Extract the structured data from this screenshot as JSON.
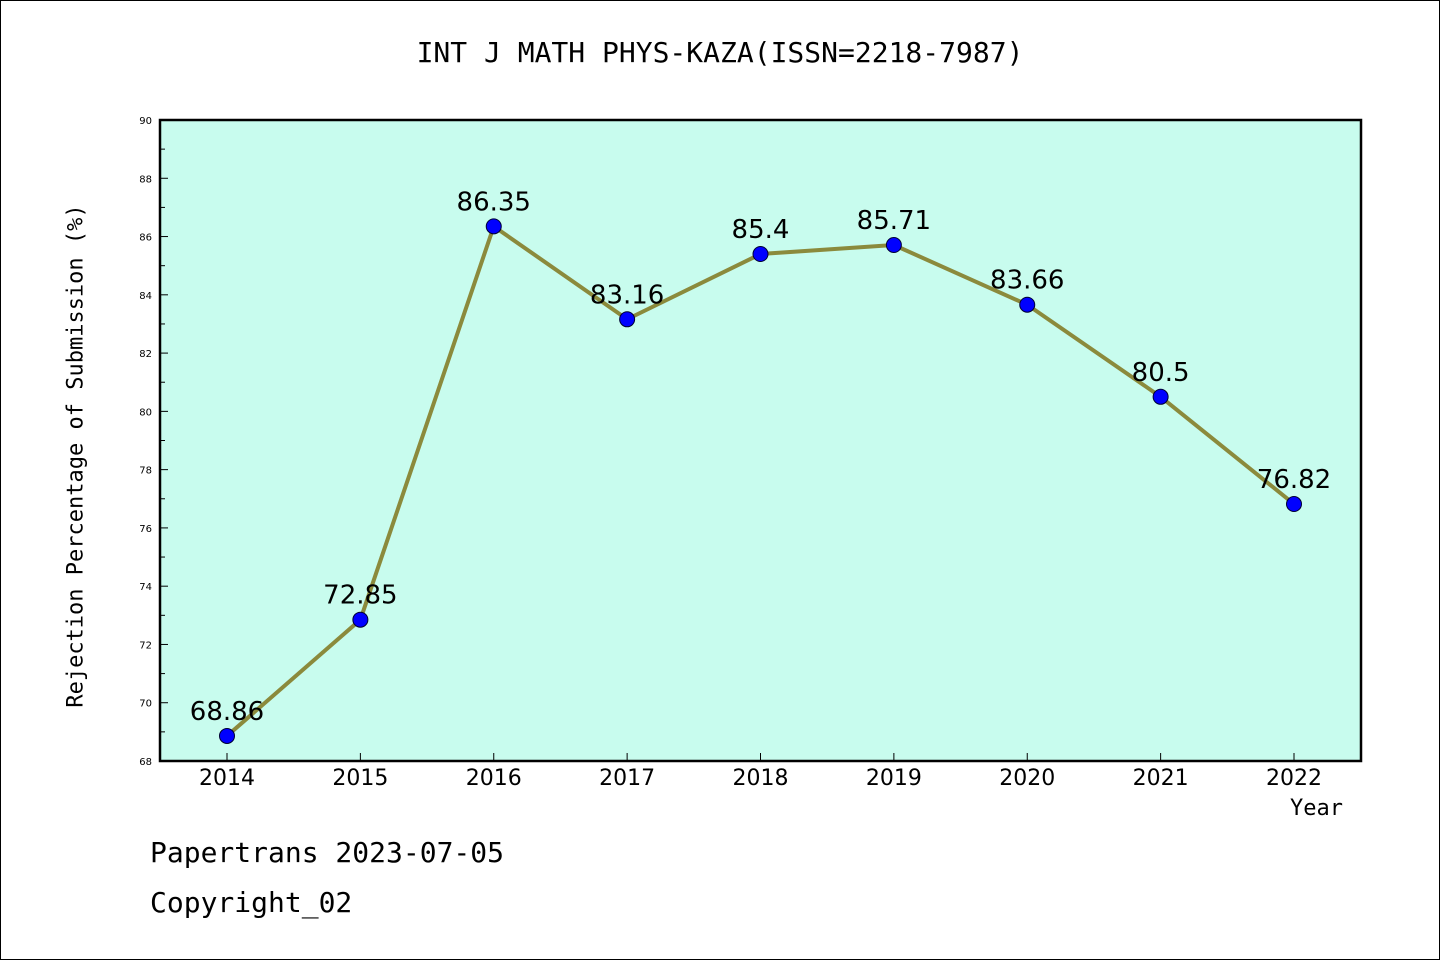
{
  "chart_data": {
    "type": "line",
    "title": "INT J MATH PHYS-KAZA(ISSN=2218-7987)",
    "xlabel": "Year",
    "ylabel": "Rejection Percentage of Submission (%)",
    "categories": [
      "2014",
      "2015",
      "2016",
      "2017",
      "2018",
      "2019",
      "2020",
      "2021",
      "2022"
    ],
    "series": [
      {
        "values": [
          68.86,
          72.85,
          86.35,
          83.16,
          85.4,
          85.71,
          83.66,
          80.5,
          76.82
        ],
        "labels": [
          "68.86",
          "72.85",
          "86.35",
          "83.16",
          "85.4",
          "85.71",
          "83.66",
          "80.5",
          "76.82"
        ]
      }
    ],
    "ylim": [
      68,
      90
    ],
    "yticks": [
      "68",
      "70",
      "72",
      "74",
      "76",
      "78",
      "80",
      "82",
      "84",
      "86",
      "88",
      "90"
    ],
    "grid": false,
    "colors": {
      "plot_background": "#c8fcee",
      "line": "#8b8a3c",
      "marker": "#0000ff"
    }
  },
  "footer": {
    "line1": "Papertrans 2023-07-05",
    "line2": "Copyright_02"
  }
}
